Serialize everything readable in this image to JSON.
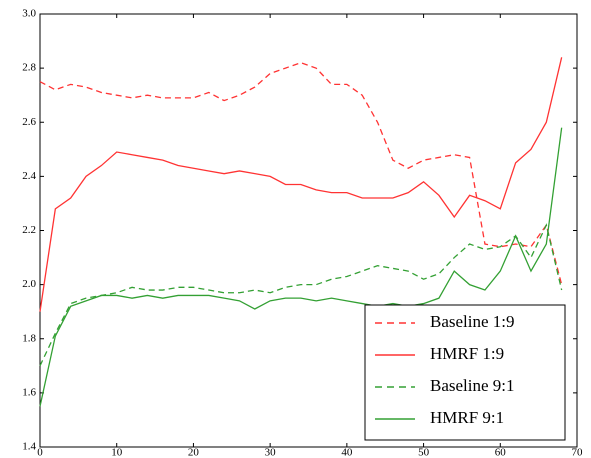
{
  "chart_data": {
    "type": "line",
    "x": [
      0,
      2,
      4,
      6,
      8,
      10,
      12,
      14,
      16,
      18,
      20,
      22,
      24,
      26,
      28,
      30,
      32,
      34,
      36,
      38,
      40,
      42,
      44,
      46,
      48,
      50,
      52,
      54,
      56,
      58,
      60,
      62,
      64,
      66,
      68
    ],
    "series": [
      {
        "name": "Baseline 1:9",
        "color": "#ff3333",
        "dash": true,
        "values": [
          2.75,
          2.72,
          2.74,
          2.73,
          2.71,
          2.7,
          2.69,
          2.7,
          2.69,
          2.69,
          2.69,
          2.71,
          2.68,
          2.7,
          2.73,
          2.78,
          2.8,
          2.82,
          2.8,
          2.74,
          2.74,
          2.7,
          2.6,
          2.46,
          2.43,
          2.46,
          2.47,
          2.48,
          2.47,
          2.15,
          2.14,
          2.15,
          2.14,
          2.22,
          2.0
        ]
      },
      {
        "name": "HMRF 1:9",
        "color": "#ff3333",
        "dash": false,
        "values": [
          1.9,
          2.28,
          2.32,
          2.4,
          2.44,
          2.49,
          2.48,
          2.47,
          2.46,
          2.44,
          2.43,
          2.42,
          2.41,
          2.42,
          2.41,
          2.4,
          2.37,
          2.37,
          2.35,
          2.34,
          2.34,
          2.32,
          2.32,
          2.32,
          2.34,
          2.38,
          2.33,
          2.25,
          2.33,
          2.31,
          2.28,
          2.45,
          2.5,
          2.6,
          2.84
        ]
      },
      {
        "name": "Baseline 9:1",
        "color": "#33a033",
        "dash": true,
        "values": [
          1.7,
          1.82,
          1.93,
          1.95,
          1.96,
          1.97,
          1.99,
          1.98,
          1.98,
          1.99,
          1.99,
          1.98,
          1.97,
          1.97,
          1.98,
          1.97,
          1.99,
          2.0,
          2.0,
          2.02,
          2.03,
          2.05,
          2.07,
          2.06,
          2.05,
          2.02,
          2.04,
          2.1,
          2.15,
          2.13,
          2.14,
          2.18,
          2.1,
          2.22,
          1.98
        ]
      },
      {
        "name": "HMRF 9:1",
        "color": "#33a033",
        "dash": false,
        "values": [
          1.55,
          1.81,
          1.92,
          1.94,
          1.96,
          1.96,
          1.95,
          1.96,
          1.95,
          1.96,
          1.96,
          1.96,
          1.95,
          1.94,
          1.91,
          1.94,
          1.95,
          1.95,
          1.94,
          1.95,
          1.94,
          1.93,
          1.92,
          1.93,
          1.92,
          1.93,
          1.95,
          2.05,
          2.0,
          1.98,
          2.05,
          2.18,
          2.05,
          2.15,
          2.58
        ]
      }
    ],
    "xlim": [
      0,
      70
    ],
    "xticks": [
      0,
      10,
      20,
      30,
      40,
      50,
      60,
      70
    ],
    "ylim": [
      1.4,
      3.0
    ],
    "yticks": [
      1.4,
      1.6,
      1.8,
      {
        "value": 2.0,
        "label": "2.0"
      },
      2.2,
      2.4,
      2.6,
      2.8,
      {
        "value": 3.0,
        "label": "3.0"
      }
    ],
    "legend": "lower right"
  }
}
